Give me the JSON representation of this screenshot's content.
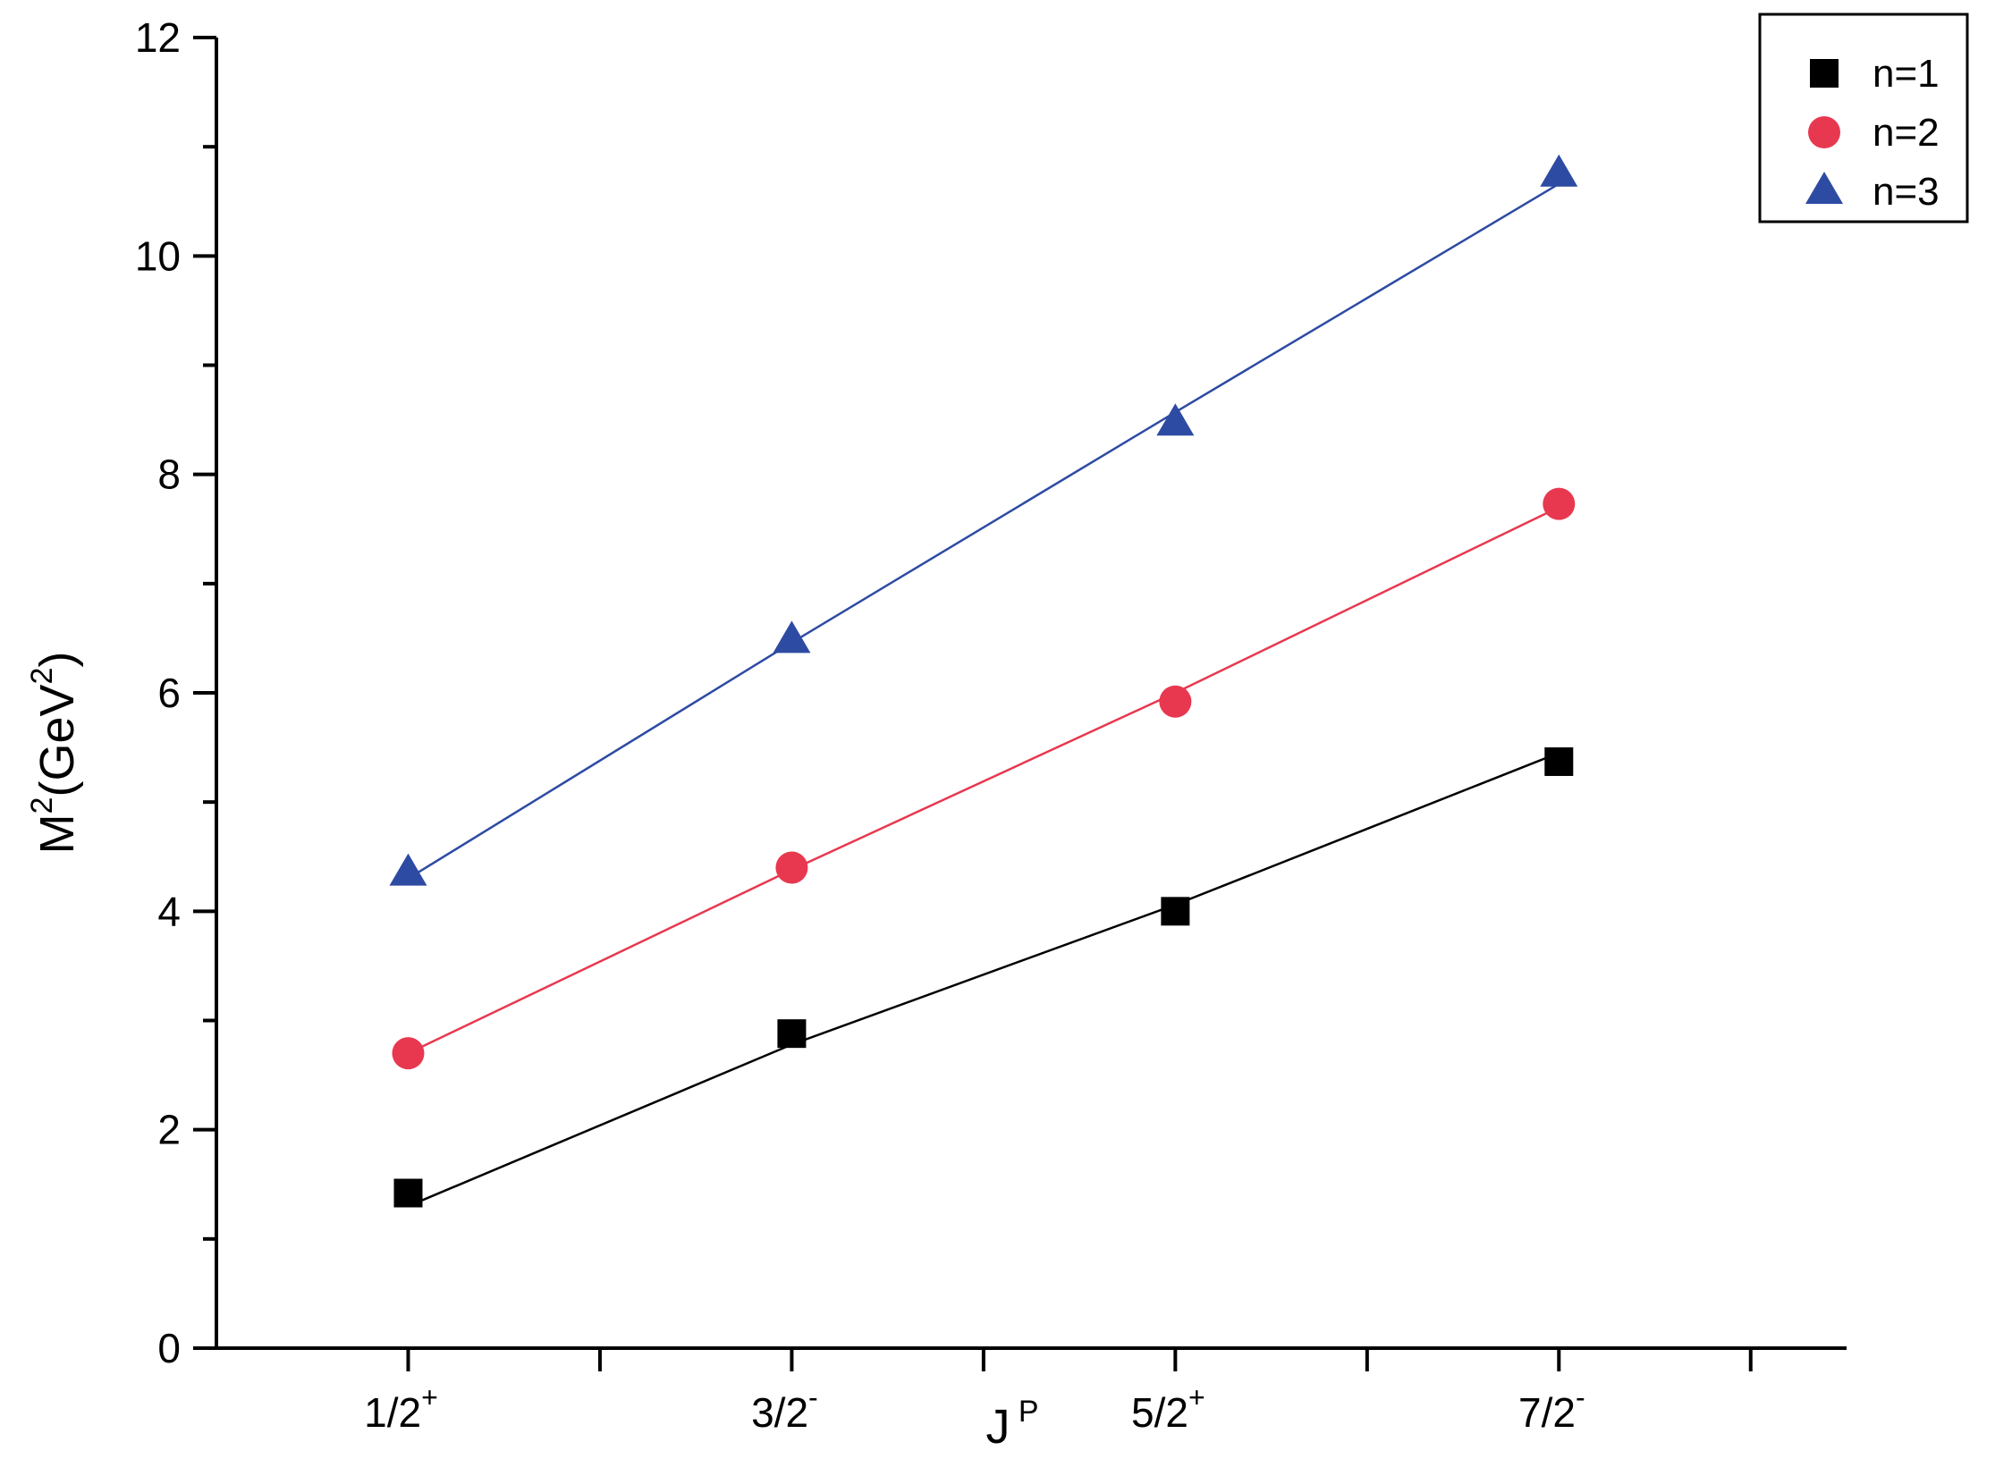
{
  "chart_data": {
    "type": "line",
    "xlabel": "J",
    "xlabel_sup": "P",
    "ylabel": "M",
    "ylabel_sup": "2",
    "ylabel_mid": "(GeV",
    "ylabel_sup2": "2",
    "ylabel_end": ")",
    "categories": [
      {
        "base": "1/2",
        "sup": "+"
      },
      {
        "base": "3/2",
        "sup": "-"
      },
      {
        "base": "5/2",
        "sup": "+"
      },
      {
        "base": "7/2",
        "sup": "-"
      }
    ],
    "x_positions": [
      1,
      3,
      5,
      7
    ],
    "xlim": [
      0,
      8.5
    ],
    "x_minor_ticks": [
      2,
      4,
      6,
      8
    ],
    "ylim": [
      0,
      12
    ],
    "y_major_ticks": [
      0,
      2,
      4,
      6,
      8,
      10,
      12
    ],
    "y_minor_ticks": [
      1,
      3,
      5,
      7,
      9,
      11
    ],
    "grid": false,
    "legend_position": "top-right",
    "series": [
      {
        "name": "n=1",
        "marker": "square",
        "color": "#000000",
        "values": [
          1.42,
          2.88,
          4.0,
          5.37
        ],
        "fit": [
          1.3,
          2.78,
          4.06,
          5.45
        ]
      },
      {
        "name": "n=2",
        "marker": "circle",
        "color": "#e8384f",
        "values": [
          2.7,
          4.4,
          5.92,
          7.73
        ],
        "fit": [
          2.7,
          4.38,
          6.0,
          7.7
        ]
      },
      {
        "name": "n=3",
        "marker": "triangle",
        "color": "#2e4ba3",
        "values": [
          4.35,
          6.48,
          8.47,
          10.75
        ],
        "fit": [
          4.3,
          6.46,
          8.57,
          10.66
        ]
      }
    ]
  }
}
